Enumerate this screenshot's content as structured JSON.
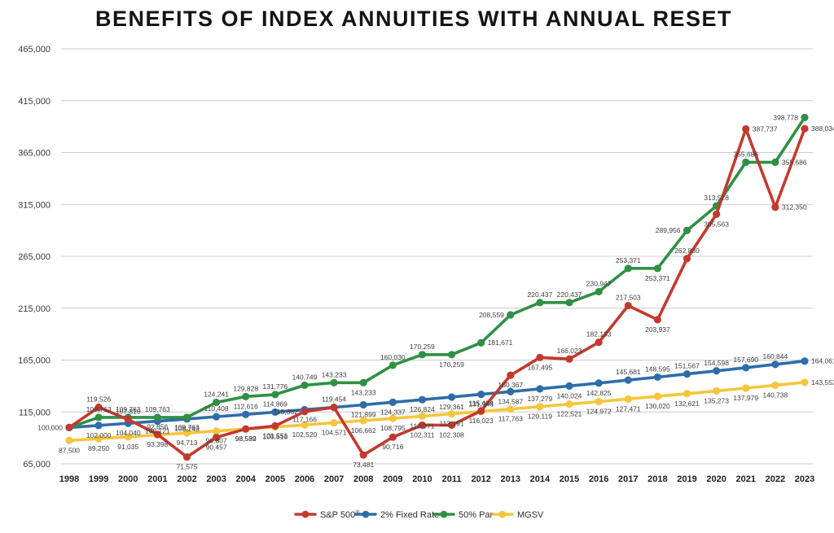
{
  "title": "BENEFITS OF INDEX ANNUITIES WITH ANNUAL RESET",
  "chart_data": {
    "type": "line",
    "title": "BENEFITS OF INDEX ANNUITIES WITH ANNUAL RESET",
    "x": [
      1998,
      1999,
      2000,
      2001,
      2002,
      2003,
      2004,
      2005,
      2006,
      2007,
      2008,
      2009,
      2010,
      2011,
      2012,
      2013,
      2014,
      2015,
      2016,
      2017,
      2018,
      2019,
      2020,
      2021,
      2022,
      2023
    ],
    "ylim": [
      65000,
      465000
    ],
    "yticks": [
      65000,
      115000,
      165000,
      215000,
      265000,
      315000,
      365000,
      415000,
      465000
    ],
    "grid": true,
    "legend_position": "bottom",
    "series": [
      {
        "name": "2% Fixed Rate",
        "color": "#2e6da8",
        "values": [
          100000,
          102000,
          104040,
          106121,
          108243,
          110408,
          112616,
          114869,
          117166,
          119454,
          121899,
          124337,
          126824,
          129361,
          131948,
          134587,
          137279,
          140024,
          142825,
          145681,
          148595,
          151567,
          154598,
          157690,
          160844,
          164061
        ],
        "label_pos": [
          "h",
          "b",
          "b",
          "b",
          "b",
          "a",
          "a",
          "a",
          "b",
          "a",
          "b",
          "b",
          "b",
          "b",
          "b",
          "b",
          "b",
          "b",
          "b",
          "a",
          "a",
          "a",
          "a",
          "a",
          "a",
          "r"
        ]
      },
      {
        "name": "MGSV",
        "color": "#f5c63c",
        "values": [
          87500,
          89250,
          91035,
          92856,
          94713,
          96607,
          98539,
          100510,
          102520,
          104571,
          106662,
          108795,
          110971,
          113191,
          115454,
          117763,
          120119,
          122521,
          124972,
          127471,
          130020,
          132621,
          135273,
          137979,
          140738,
          143553
        ],
        "label_pos": [
          "b",
          "b",
          "b",
          "a",
          "b",
          "b",
          "b",
          "b",
          "b",
          "b",
          "b",
          "b",
          "b",
          "b",
          "a",
          "b",
          "b",
          "b",
          "b",
          "b",
          "b",
          "b",
          "b",
          "b",
          "b",
          "r"
        ]
      },
      {
        "name": "50% Par",
        "color": "#2f9044",
        "values": [
          100000,
          109763,
          109763,
          109763,
          109763,
          124241,
          129828,
          131776,
          140749,
          143233,
          143233,
          160030,
          170259,
          170259,
          181671,
          208559,
          220437,
          220437,
          230947,
          253371,
          253371,
          289956,
          313528,
          355686,
          355686,
          398778
        ],
        "label_pos": [
          "h",
          "a",
          "a",
          "a",
          "b",
          "a",
          "a",
          "a",
          "a",
          "a",
          "b",
          "a",
          "a",
          "b",
          "r",
          "l",
          "a",
          "a",
          "a",
          "a",
          "b",
          "l",
          "a",
          "a",
          "r",
          "l"
        ]
      },
      {
        "name": "S&P 500",
        "name_sup": "®",
        "color": "#c23a2e",
        "values": [
          100000,
          119526,
          107810,
          93398,
          71575,
          90457,
          98592,
          101551,
          115362,
          119399,
          73481,
          90716,
          102311,
          102308,
          116023,
          150367,
          167495,
          166023,
          182133,
          217503,
          203937,
          262830,
          305563,
          387737,
          312350,
          388034
        ],
        "label_pos": [
          "l",
          "a",
          "a",
          "b",
          "b",
          "b",
          "b",
          "b",
          "l",
          "h",
          "b",
          "b",
          "b",
          "b",
          "b",
          "b",
          "b",
          "a",
          "a",
          "a",
          "b",
          "a",
          "b",
          "r",
          "r",
          "r"
        ]
      }
    ],
    "legend": [
      {
        "label": "S&P 500",
        "sup": "®",
        "color": "#c23a2e"
      },
      {
        "label": "2% Fixed Rate",
        "sup": "",
        "color": "#2e6da8"
      },
      {
        "label": "50% Par",
        "sup": "",
        "color": "#2f9044"
      },
      {
        "label": "MGSV",
        "sup": "",
        "color": "#f5c63c"
      }
    ]
  }
}
